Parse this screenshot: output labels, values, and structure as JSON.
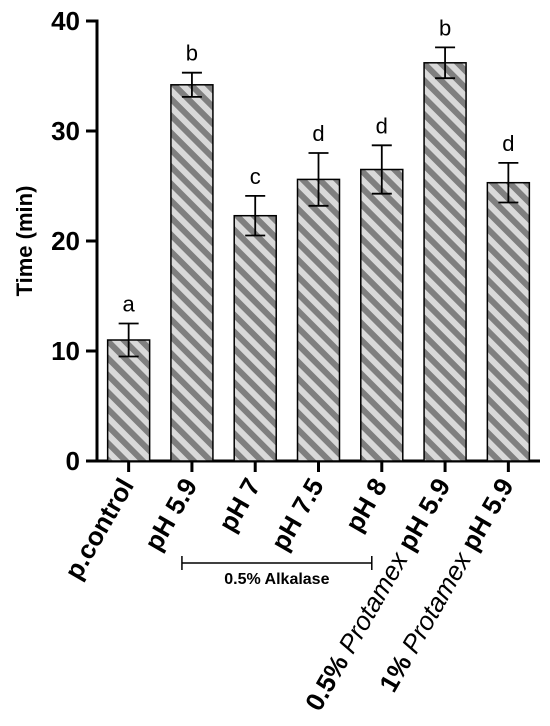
{
  "chart_data": {
    "type": "bar",
    "categories": [
      "p.control",
      "pH 5.9",
      "pH 7",
      "pH 7.5",
      "pH 8",
      "0.5% Protamex pH 5.9",
      "1% Protamex pH 5.9"
    ],
    "category_labels": [
      [
        {
          "text": "p.control",
          "italic": false
        }
      ],
      [
        {
          "text": "pH 5.9",
          "italic": false
        }
      ],
      [
        {
          "text": "pH 7",
          "italic": false
        }
      ],
      [
        {
          "text": "pH 7.5",
          "italic": false
        }
      ],
      [
        {
          "text": "pH 8",
          "italic": false
        }
      ],
      [
        {
          "text": "0.5% ",
          "italic": false
        },
        {
          "text": "Protamex",
          "italic": true
        },
        {
          "text": " pH 5.9",
          "italic": false
        }
      ],
      [
        {
          "text": "1% ",
          "italic": false
        },
        {
          "text": "Protamex",
          "italic": true
        },
        {
          "text": " pH 5.9",
          "italic": false
        }
      ]
    ],
    "values": [
      11.0,
      34.2,
      22.3,
      25.6,
      26.5,
      36.2,
      25.3
    ],
    "errors": [
      1.5,
      1.1,
      1.8,
      2.4,
      2.2,
      1.4,
      1.8
    ],
    "significance_letters": [
      "a",
      "b",
      "c",
      "d",
      "d",
      "b",
      "d"
    ],
    "ylabel": "Time (min)",
    "ylim": [
      0,
      40
    ],
    "yticks": [
      0,
      10,
      20,
      30,
      40
    ],
    "bar_fill": "#d9d9d9",
    "hatch_color": "#7f7f7f",
    "grid": false,
    "group_bracket": {
      "label": "0.5% Alkalase",
      "from_category": "pH 5.9",
      "to_category": "pH 8"
    }
  }
}
